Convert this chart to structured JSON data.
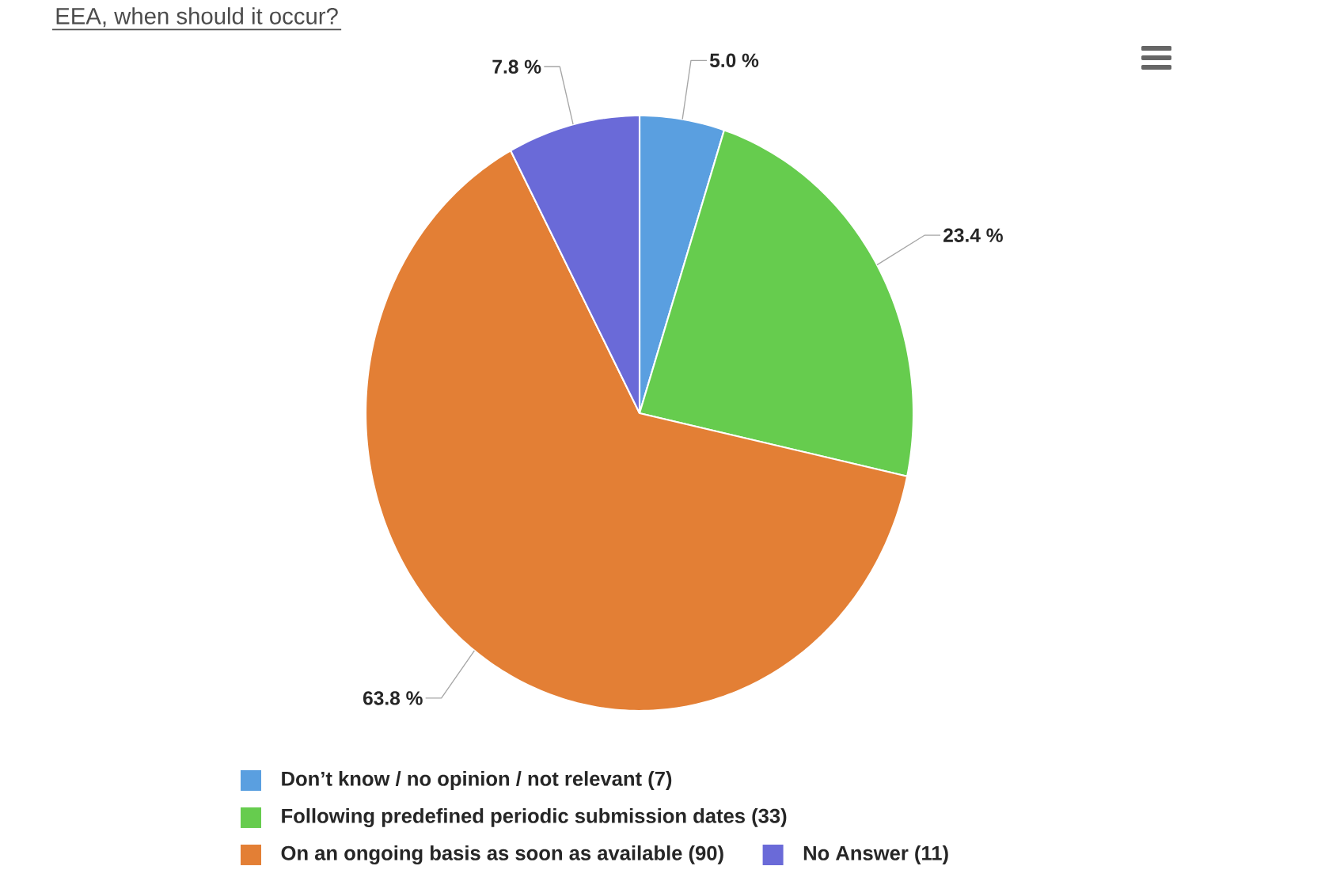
{
  "chart_data": {
    "type": "pie",
    "title": "EEA, when should it occur?",
    "categories": [
      "Don’t know / no opinion / not relevant (7)",
      "Following predefined periodic submission dates (33)",
      "On an ongoing basis as soon as available (90)",
      "No Answer (11)"
    ],
    "values": [
      5.0,
      23.4,
      63.8,
      7.8
    ],
    "colors": [
      "#5a9fe0",
      "#66cc4e",
      "#e37f35",
      "#6a6ad8"
    ],
    "value_labels": [
      "5.0 %",
      "23.4 %",
      "63.8 %",
      "7.8 %"
    ],
    "legend": "bottom"
  }
}
